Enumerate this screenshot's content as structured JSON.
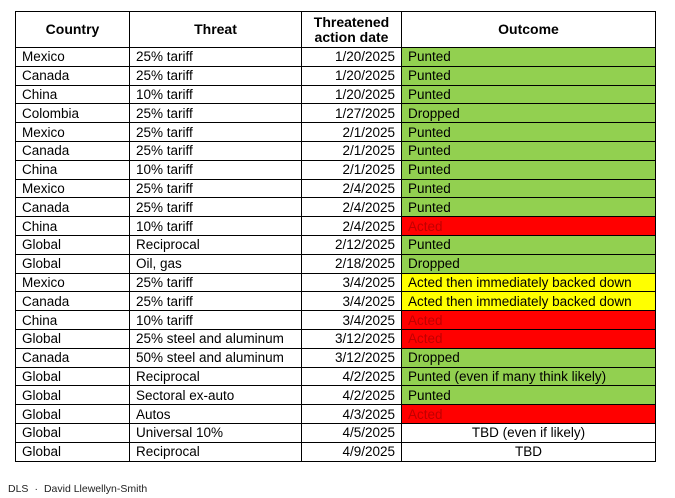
{
  "table": {
    "headers": {
      "country": "Country",
      "threat": "Threat",
      "date_line1": "Threatened",
      "date_line2": "action date",
      "outcome": "Outcome"
    },
    "colors": {
      "Punted": "#92d050",
      "Dropped": "#92d050",
      "Acted": "#ff0000",
      "Backed": "#ffff00",
      "TBD": "#ffffff"
    },
    "rows": [
      {
        "country": "Mexico",
        "threat": "25% tariff",
        "date": "1/20/2025",
        "outcome": "Punted",
        "status": "Punted"
      },
      {
        "country": "Canada",
        "threat": "25% tariff",
        "date": "1/20/2025",
        "outcome": "Punted",
        "status": "Punted"
      },
      {
        "country": "China",
        "threat": "10% tariff",
        "date": "1/20/2025",
        "outcome": "Punted",
        "status": "Punted"
      },
      {
        "country": "Colombia",
        "threat": "25% tariff",
        "date": "1/27/2025",
        "outcome": "Dropped",
        "status": "Dropped"
      },
      {
        "country": "Mexico",
        "threat": "25% tariff",
        "date": "2/1/2025",
        "outcome": "Punted",
        "status": "Punted"
      },
      {
        "country": "Canada",
        "threat": "25% tariff",
        "date": "2/1/2025",
        "outcome": "Punted",
        "status": "Punted"
      },
      {
        "country": "China",
        "threat": "10% tariff",
        "date": "2/1/2025",
        "outcome": "Punted",
        "status": "Punted"
      },
      {
        "country": "Mexico",
        "threat": "25% tariff",
        "date": "2/4/2025",
        "outcome": "Punted",
        "status": "Punted"
      },
      {
        "country": "Canada",
        "threat": "25% tariff",
        "date": "2/4/2025",
        "outcome": "Punted",
        "status": "Punted"
      },
      {
        "country": "China",
        "threat": "10% tariff",
        "date": "2/4/2025",
        "outcome": "Acted",
        "status": "Acted"
      },
      {
        "country": "Global",
        "threat": "Reciprocal",
        "date": "2/12/2025",
        "outcome": "Punted",
        "status": "Punted"
      },
      {
        "country": "Global",
        "threat": "Oil, gas",
        "date": "2/18/2025",
        "outcome": "Dropped",
        "status": "Dropped"
      },
      {
        "country": "Mexico",
        "threat": "25% tariff",
        "date": "3/4/2025",
        "outcome": "Acted then immediately backed down",
        "status": "Backed"
      },
      {
        "country": "Canada",
        "threat": "25% tariff",
        "date": "3/4/2025",
        "outcome": "Acted then immediately backed down",
        "status": "Backed"
      },
      {
        "country": "China",
        "threat": "10% tariff",
        "date": "3/4/2025",
        "outcome": "Acted",
        "status": "Acted"
      },
      {
        "country": "Global",
        "threat": "25% steel and aluminum",
        "date": "3/12/2025",
        "outcome": "Acted",
        "status": "Acted"
      },
      {
        "country": "Canada",
        "threat": "50% steel and aluminum",
        "date": "3/12/2025",
        "outcome": "Dropped",
        "status": "Dropped"
      },
      {
        "country": "Global",
        "threat": "Reciprocal",
        "date": "4/2/2025",
        "outcome": "Punted (even if many think likely)",
        "status": "Punted"
      },
      {
        "country": "Global",
        "threat": "Sectoral ex-auto",
        "date": "4/2/2025",
        "outcome": "Punted",
        "status": "Punted"
      },
      {
        "country": "Global",
        "threat": "Autos",
        "date": "4/3/2025",
        "outcome": "Acted",
        "status": "Acted"
      },
      {
        "country": "Global",
        "threat": "Universal 10%",
        "date": "4/5/2025",
        "outcome": "TBD (even if likely)",
        "status": "TBD"
      },
      {
        "country": "Global",
        "threat": "Reciprocal",
        "date": "4/9/2025",
        "outcome": "TBD",
        "status": "TBD"
      }
    ]
  },
  "credit": {
    "source": "DLS",
    "separator": "·",
    "author": "David Llewellyn-Smith"
  }
}
